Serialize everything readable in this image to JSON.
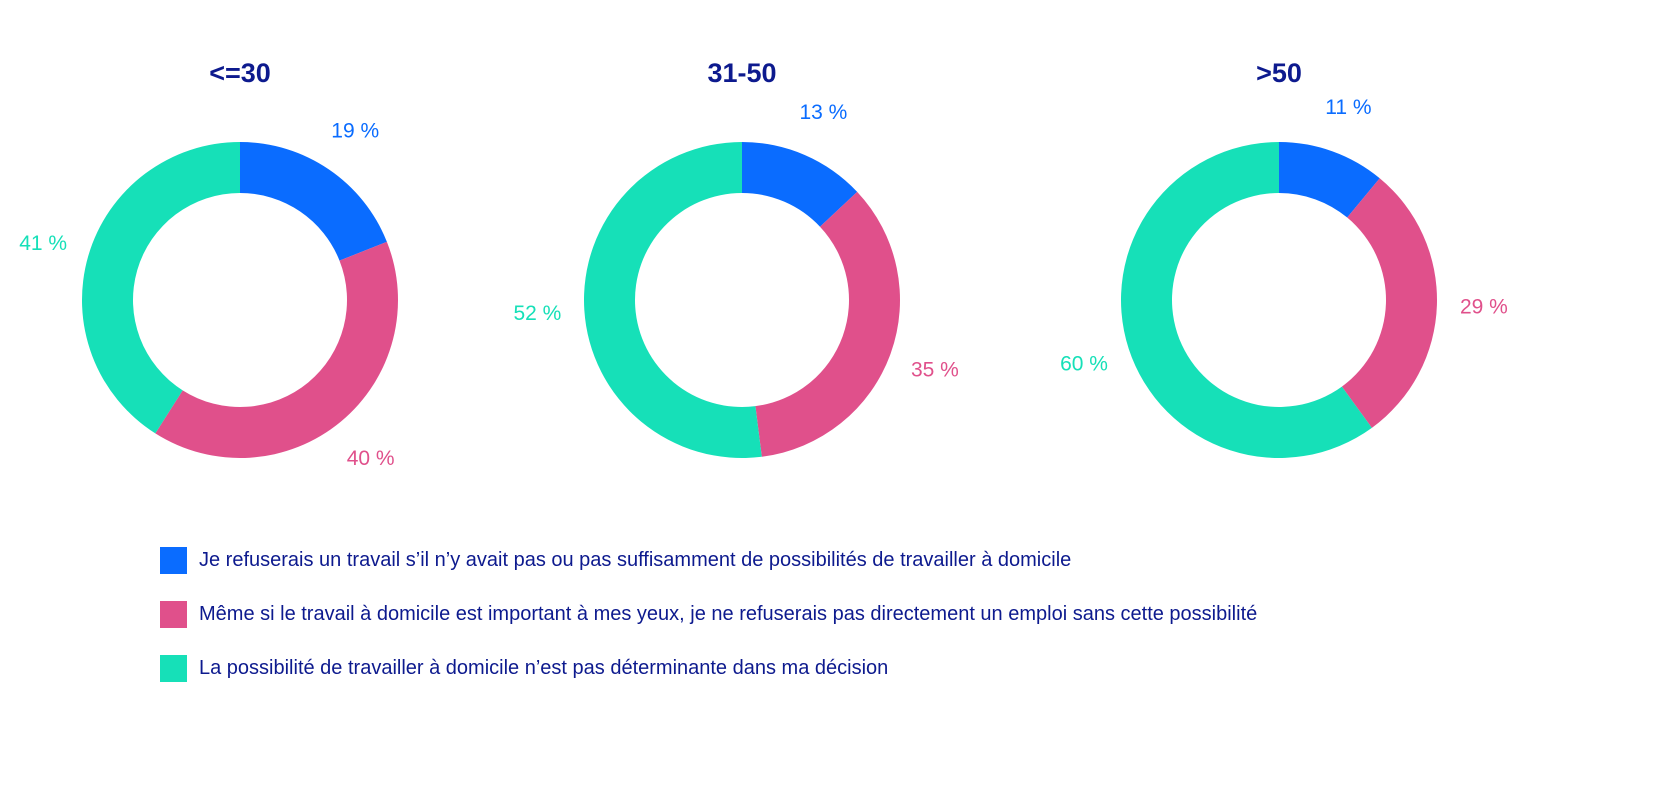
{
  "colors": {
    "blue": "#0a6cff",
    "pink": "#e0508b",
    "teal": "#16e0b8",
    "title": "#0d1a8e",
    "legend_text": "#0d1a8e"
  },
  "chart_data": [
    {
      "type": "pie",
      "donut": true,
      "title": "<=30",
      "series_keys": [
        "refuse",
        "important",
        "not_decisive"
      ],
      "values": [
        19,
        40,
        41
      ],
      "labels": [
        "19 %",
        "40 %",
        "41 %"
      ]
    },
    {
      "type": "pie",
      "donut": true,
      "title": "31-50",
      "series_keys": [
        "refuse",
        "important",
        "not_decisive"
      ],
      "values": [
        13,
        35,
        52
      ],
      "labels": [
        "13 %",
        "35 %",
        "52 %"
      ]
    },
    {
      "type": "pie",
      "donut": true,
      "title": ">50",
      "series_keys": [
        "refuse",
        "important",
        "not_decisive"
      ],
      "values": [
        11,
        29,
        60
      ],
      "labels": [
        "11 %",
        "29 %",
        "60 %"
      ]
    }
  ],
  "legend": [
    {
      "key": "refuse",
      "color": "#0a6cff",
      "label": "Je refuserais un travail s’il n’y avait pas ou pas suffisamment de possibilités de travailler à domicile"
    },
    {
      "key": "important",
      "color": "#e0508b",
      "label": "Même si le travail à domicile est important à mes yeux, je ne refuserais pas directement un emploi sans cette possibilité"
    },
    {
      "key": "not_decisive",
      "color": "#16e0b8",
      "label": "La possibilité de travailler à domicile n’est pas déterminante dans ma décision"
    }
  ]
}
